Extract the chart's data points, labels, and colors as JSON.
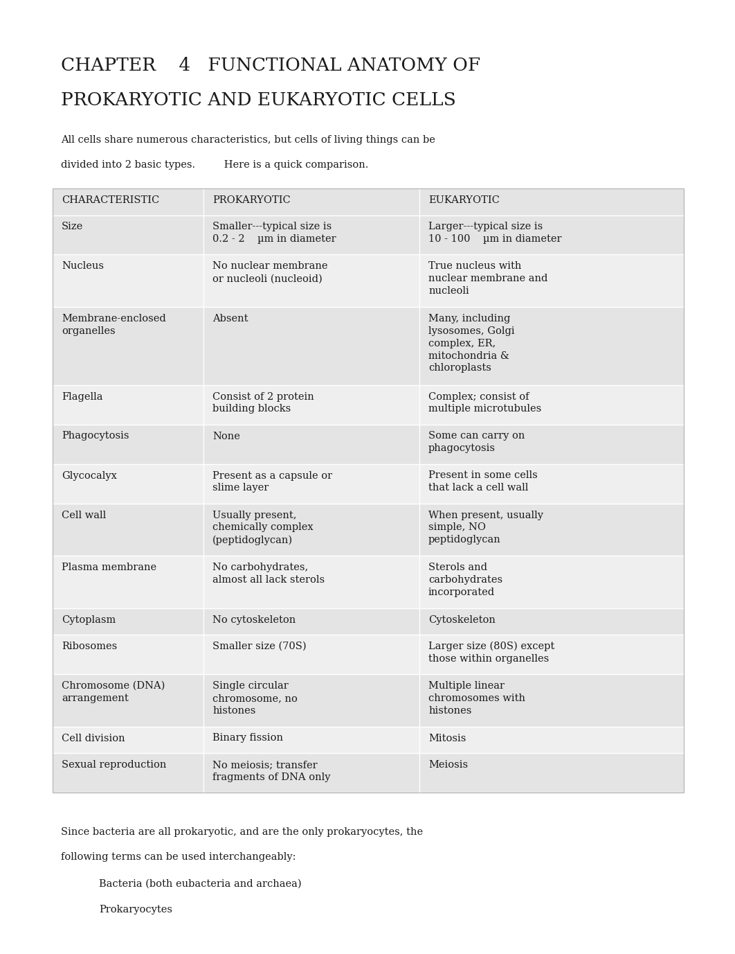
{
  "title_line1": "CHAPTER    4   FUNCTIONAL ANATOMY OF",
  "title_line2": "PROKARYOTIC AND EUKARYOTIC CELLS",
  "intro_line1": "All cells share numerous characteristics, but cells of living things can be",
  "intro_line2": "divided into 2 basic types.         Here is a quick comparison.",
  "table_header": [
    "CHARACTERISTIC",
    "PROKARYOTIC",
    "EUKARYOTIC"
  ],
  "table_rows": [
    [
      "Size",
      "Smaller---typical size is\n0.2 - 2    µm in diameter",
      "Larger---typical size is\n10 - 100    µm in diameter"
    ],
    [
      "Nucleus",
      "No nuclear membrane\nor nucleoli (nucleoid)",
      "True nucleus with\nnuclear membrane and\nnucleoli"
    ],
    [
      "Membrane-enclosed\norganelles",
      "Absent",
      "Many, including\nlysosomes, Golgi\ncomplex, ER,\nmitochondria &\nchloroplasts"
    ],
    [
      "Flagella",
      "Consist of 2 protein\nbuilding blocks",
      "Complex; consist of\nmultiple microtubules"
    ],
    [
      "Phagocytosis",
      "None",
      "Some can carry on\nphagocytosis"
    ],
    [
      "Glycocalyx",
      "Present as a capsule or\nslime layer",
      "Present in some cells\nthat lack a cell wall"
    ],
    [
      "Cell wall",
      "Usually present,\nchemically complex\n(peptidoglycan)",
      "When present, usually\nsimple, NO\npeptidoglycan"
    ],
    [
      "Plasma membrane",
      "No carbohydrates,\nalmost all lack sterols",
      "Sterols and\ncarbohydrates\nincorporated"
    ],
    [
      "Cytoplasm",
      "No cytoskeleton",
      "Cytoskeleton"
    ],
    [
      "Ribosomes",
      "Smaller size (70S)",
      "Larger size (80S) except\nthose within organelles"
    ],
    [
      "Chromosome (DNA)\narrangement",
      "Single circular\nchromosome, no\nhistones",
      "Multiple linear\nchromosomes with\nhistones"
    ],
    [
      "Cell division",
      "Binary fission",
      "Mitosis"
    ],
    [
      "Sexual reproduction",
      "No meiosis; transfer\nfragments of DNA only",
      "Meiosis"
    ]
  ],
  "footer_line1": "Since bacteria are all prokaryotic, and are the only prokaryocytes, the",
  "footer_line2": "following terms can be used interchangeably:",
  "footer_bullet1": "Bacteria (both eubacteria and archaea)",
  "footer_bullet2": "Prokaryocytes",
  "bg_color": "#ffffff",
  "table_bg": "#e4e4e4",
  "row_alt_bg": "#efefef",
  "text_color": "#1a1a1a",
  "title_fontsize": 19,
  "body_fontsize": 10.5,
  "header_fontsize": 10.5
}
